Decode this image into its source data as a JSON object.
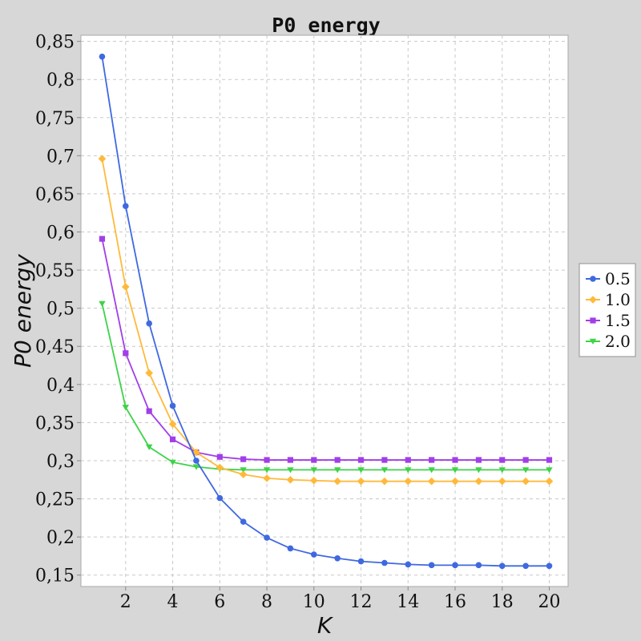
{
  "chart_data": {
    "type": "line",
    "title": "P0 energy",
    "xlabel": "K",
    "ylabel": "P0 energy",
    "xlim": [
      0.1,
      20.8
    ],
    "ylim": [
      0.135,
      0.858
    ],
    "x_ticks": [
      2,
      4,
      6,
      8,
      10,
      12,
      14,
      16,
      18,
      20
    ],
    "y_ticks": [
      0.15,
      0.2,
      0.25,
      0.3,
      0.35,
      0.4,
      0.45,
      0.5,
      0.55,
      0.6,
      0.65,
      0.7,
      0.75,
      0.8,
      0.85
    ],
    "y_tick_labels": [
      "0,15",
      "0,2",
      "0,25",
      "0,3",
      "0,35",
      "0,4",
      "0,45",
      "0,5",
      "0,55",
      "0,6",
      "0,65",
      "0,7",
      "0,75",
      "0,8",
      "0,85"
    ],
    "grid": true,
    "legend_position": "right",
    "x": [
      1,
      2,
      3,
      4,
      5,
      6,
      7,
      8,
      9,
      10,
      11,
      12,
      13,
      14,
      15,
      16,
      17,
      18,
      19,
      20
    ],
    "series": [
      {
        "name": "0.5",
        "color": "#3f69e0",
        "marker": "circle",
        "values": [
          0.83,
          0.634,
          0.48,
          0.372,
          0.3,
          0.251,
          0.22,
          0.199,
          0.185,
          0.177,
          0.172,
          0.168,
          0.166,
          0.164,
          0.163,
          0.163,
          0.163,
          0.162,
          0.162,
          0.162
        ]
      },
      {
        "name": "1.0",
        "color": "#ffb93a",
        "marker": "diamond",
        "values": [
          0.696,
          0.528,
          0.415,
          0.348,
          0.311,
          0.291,
          0.282,
          0.277,
          0.275,
          0.274,
          0.273,
          0.273,
          0.273,
          0.273,
          0.273,
          0.273,
          0.273,
          0.273,
          0.273,
          0.273
        ]
      },
      {
        "name": "1.5",
        "color": "#a13ee8",
        "marker": "square",
        "values": [
          0.591,
          0.441,
          0.365,
          0.328,
          0.311,
          0.305,
          0.302,
          0.301,
          0.301,
          0.301,
          0.301,
          0.301,
          0.301,
          0.301,
          0.301,
          0.301,
          0.301,
          0.301,
          0.301,
          0.301
        ]
      },
      {
        "name": "2.0",
        "color": "#3ed348",
        "marker": "triangle-down",
        "values": [
          0.506,
          0.37,
          0.318,
          0.298,
          0.292,
          0.289,
          0.288,
          0.288,
          0.288,
          0.288,
          0.288,
          0.288,
          0.288,
          0.288,
          0.288,
          0.288,
          0.288,
          0.288,
          0.288,
          0.288
        ]
      }
    ]
  }
}
